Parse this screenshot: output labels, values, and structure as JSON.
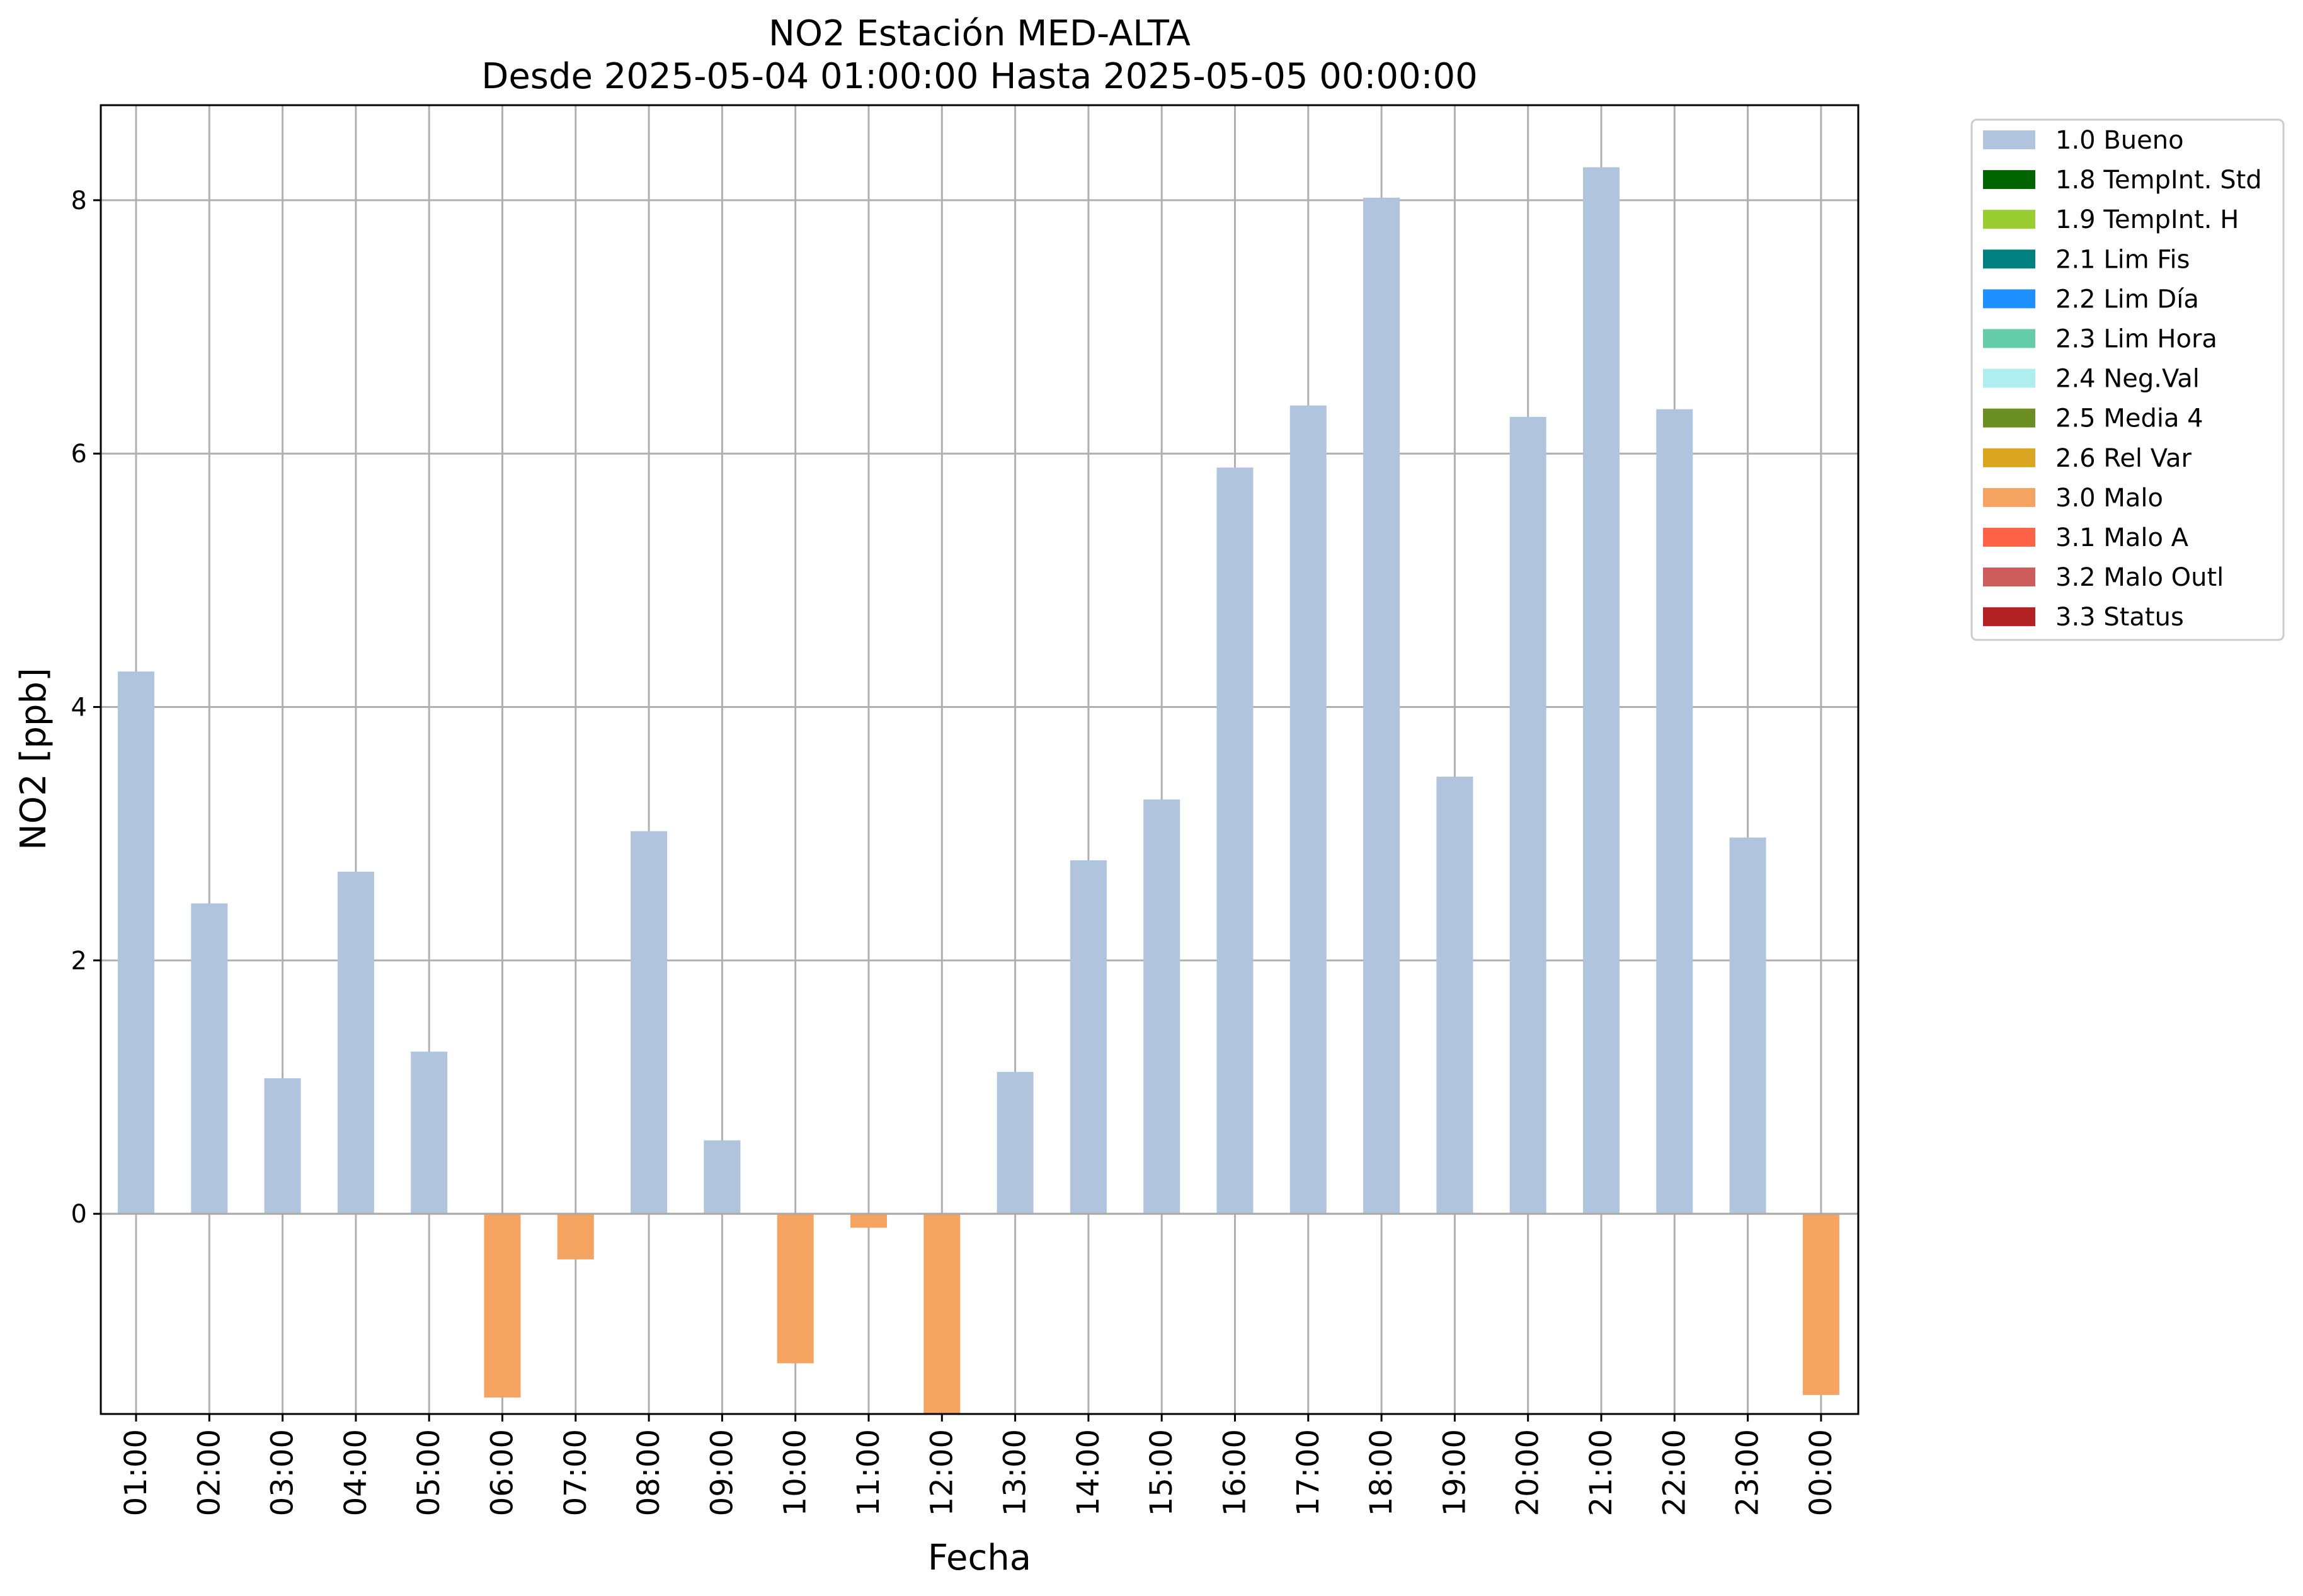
{
  "chart_data": {
    "type": "bar",
    "title": "NO2 Estación MED-ALTA",
    "subtitle": "Desde 2025-05-04 01:00:00 Hasta 2025-05-05 00:00:00",
    "xlabel": "Fecha",
    "ylabel": "NO2 [ppb]",
    "ylim": [
      -1.58,
      8.75
    ],
    "yticks": [
      0,
      2,
      4,
      6,
      8
    ],
    "grid": true,
    "legend_position": "outside-top-right",
    "categories": [
      "01:00",
      "02:00",
      "03:00",
      "04:00",
      "05:00",
      "06:00",
      "07:00",
      "08:00",
      "09:00",
      "10:00",
      "11:00",
      "12:00",
      "13:00",
      "14:00",
      "15:00",
      "16:00",
      "17:00",
      "18:00",
      "19:00",
      "20:00",
      "21:00",
      "22:00",
      "23:00",
      "00:00"
    ],
    "values": [
      4.28,
      2.45,
      1.07,
      2.7,
      1.28,
      -1.45,
      -0.36,
      3.02,
      0.58,
      -1.18,
      -0.11,
      -1.58,
      1.12,
      2.79,
      3.27,
      5.89,
      6.38,
      8.02,
      3.45,
      6.29,
      8.26,
      6.35,
      2.97,
      -1.43
    ],
    "flags": [
      "1.0 Bueno",
      "1.0 Bueno",
      "1.0 Bueno",
      "1.0 Bueno",
      "1.0 Bueno",
      "3.0 Malo",
      "3.0 Malo",
      "1.0 Bueno",
      "1.0 Bueno",
      "3.0 Malo",
      "3.0 Malo",
      "3.0 Malo",
      "1.0 Bueno",
      "1.0 Bueno",
      "1.0 Bueno",
      "1.0 Bueno",
      "1.0 Bueno",
      "1.0 Bueno",
      "1.0 Bueno",
      "1.0 Bueno",
      "1.0 Bueno",
      "1.0 Bueno",
      "1.0 Bueno",
      "3.0 Malo"
    ],
    "legend": [
      {
        "label": "1.0 Bueno",
        "color": "#b0c4de"
      },
      {
        "label": "1.8 TempInt. Std",
        "color": "#006400"
      },
      {
        "label": "1.9 TempInt. H",
        "color": "#9acd32"
      },
      {
        "label": "2.1 Lim Fis",
        "color": "#008080"
      },
      {
        "label": "2.2 Lim Día",
        "color": "#1e90ff"
      },
      {
        "label": "2.3 Lim Hora",
        "color": "#66cdaa"
      },
      {
        "label": "2.4 Neg.Val",
        "color": "#afeeee"
      },
      {
        "label": "2.5 Media 4",
        "color": "#6b8e23"
      },
      {
        "label": "2.6 Rel Var",
        "color": "#daa520"
      },
      {
        "label": "3.0 Malo",
        "color": "#f4a460"
      },
      {
        "label": "3.1 Malo A",
        "color": "#ff6347"
      },
      {
        "label": "3.2 Malo Outl",
        "color": "#cd5c5c"
      },
      {
        "label": "3.3 Status",
        "color": "#b22222"
      }
    ]
  }
}
